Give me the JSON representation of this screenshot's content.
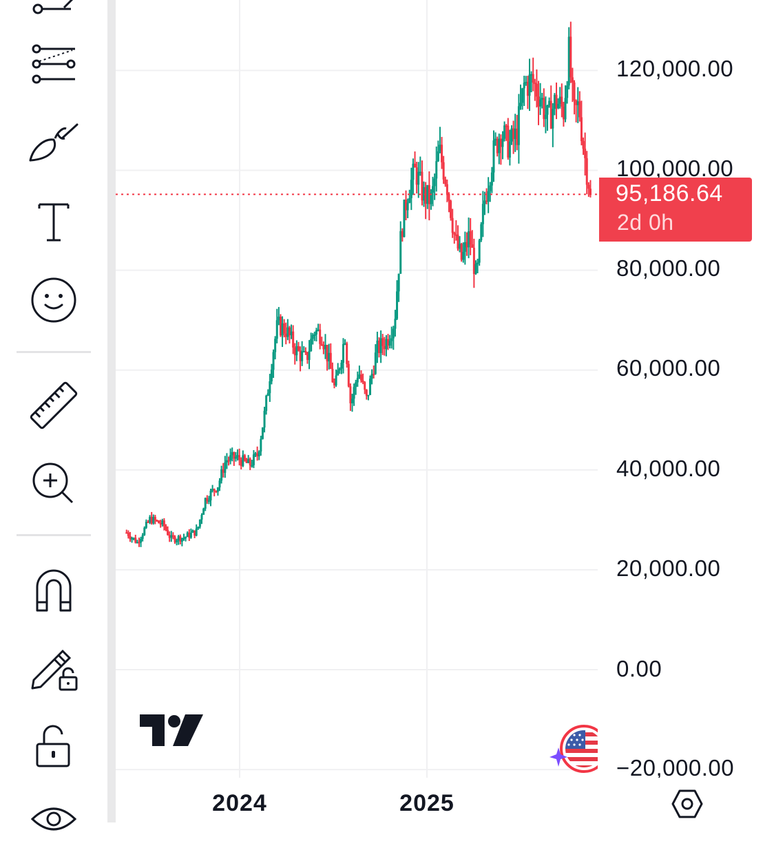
{
  "toolbar": {
    "tools": [
      {
        "name": "trend-line-tool",
        "icon": "trend-line-icon"
      },
      {
        "name": "fib-retracement-tool",
        "icon": "fib-lines-icon"
      },
      {
        "name": "brush-tool",
        "icon": "brush-icon"
      },
      {
        "name": "text-tool",
        "icon": "text-icon",
        "glyph": "T"
      },
      {
        "name": "emoji-tool",
        "icon": "smiley-icon"
      },
      {
        "name": "measure-tool",
        "icon": "ruler-icon"
      },
      {
        "name": "zoom-in-tool",
        "icon": "zoom-in-icon"
      },
      {
        "name": "magnet-mode-tool",
        "icon": "magnet-icon"
      },
      {
        "name": "lock-drawings-tool",
        "icon": "pencil-lock-icon"
      },
      {
        "name": "lock-all-tool",
        "icon": "unlock-icon"
      },
      {
        "name": "hide-drawings-tool",
        "icon": "eye-icon"
      }
    ]
  },
  "price_axis": {
    "ticks": [
      "120,000.00",
      "100,000.00",
      "80,000.00",
      "60,000.00",
      "40,000.00",
      "20,000.00",
      "0.00",
      "−20,000.00"
    ]
  },
  "time_axis": {
    "ticks": [
      "2024",
      "2025"
    ]
  },
  "current_price": {
    "value": "95,186.64",
    "countdown": "2d 0h"
  },
  "colors": {
    "up": "#089981",
    "down": "#f23645",
    "price_label_bg": "#f0404d",
    "grid": "#f0f0f2",
    "toolbar_border": "#e9e9ea"
  },
  "branding": {
    "logo_icon": "tradingview-logo",
    "badge_icon": "us-flag-badge-icon"
  },
  "settings": {
    "icon": "hexagon-settings-icon"
  },
  "chart_data": {
    "type": "candlestick",
    "ylim": [
      -20000,
      125000
    ],
    "price_ticks": [
      120000,
      100000,
      80000,
      60000,
      40000,
      20000,
      0,
      -20000
    ],
    "time_ticks": [
      {
        "label": "2024",
        "date": "2024-01-01"
      },
      {
        "label": "2025",
        "date": "2025-01-01"
      }
    ],
    "x_range": [
      "2023-05-25",
      "2025-11-17"
    ],
    "current_price": 95186.64,
    "candle_interval": "1W",
    "anchors": [
      [
        "2023-05-25",
        27500
      ],
      [
        "2023-06-15",
        25500
      ],
      [
        "2023-07-10",
        30200
      ],
      [
        "2023-08-05",
        29000
      ],
      [
        "2023-08-20",
        26200
      ],
      [
        "2023-09-15",
        26500
      ],
      [
        "2023-10-10",
        27800
      ],
      [
        "2023-10-25",
        34000
      ],
      [
        "2023-11-20",
        37000
      ],
      [
        "2023-12-05",
        42000
      ],
      [
        "2023-12-25",
        42500
      ],
      [
        "2024-01-20",
        41000
      ],
      [
        "2024-02-05",
        43000
      ],
      [
        "2024-02-20",
        52000
      ],
      [
        "2024-03-05",
        63000
      ],
      [
        "2024-03-15",
        69000
      ],
      [
        "2024-04-01",
        68000
      ],
      [
        "2024-04-20",
        64000
      ],
      [
        "2024-05-10",
        62000
      ],
      [
        "2024-05-25",
        68000
      ],
      [
        "2024-06-10",
        67000
      ],
      [
        "2024-06-25",
        61000
      ],
      [
        "2024-07-05",
        56000
      ],
      [
        "2024-07-25",
        67000
      ],
      [
        "2024-08-05",
        53000
      ],
      [
        "2024-08-20",
        60000
      ],
      [
        "2024-09-05",
        54000
      ],
      [
        "2024-09-25",
        64000
      ],
      [
        "2024-10-15",
        66000
      ],
      [
        "2024-10-30",
        70000
      ],
      [
        "2024-11-12",
        88000
      ],
      [
        "2024-11-25",
        96000
      ],
      [
        "2024-12-10",
        100000
      ],
      [
        "2024-12-25",
        95000
      ],
      [
        "2025-01-10",
        94000
      ],
      [
        "2025-01-25",
        104000
      ],
      [
        "2025-02-10",
        97000
      ],
      [
        "2025-02-25",
        86000
      ],
      [
        "2025-03-10",
        82000
      ],
      [
        "2025-03-25",
        87000
      ],
      [
        "2025-04-08",
        78000
      ],
      [
        "2025-04-22",
        93000
      ],
      [
        "2025-05-10",
        103000
      ],
      [
        "2025-05-25",
        108000
      ],
      [
        "2025-06-10",
        105000
      ],
      [
        "2025-06-25",
        107000
      ],
      [
        "2025-07-10",
        117000
      ],
      [
        "2025-07-25",
        118000
      ],
      [
        "2025-08-10",
        115000
      ],
      [
        "2025-08-25",
        110000
      ],
      [
        "2025-09-10",
        114000
      ],
      [
        "2025-09-25",
        112000
      ],
      [
        "2025-10-05",
        124000
      ],
      [
        "2025-10-15",
        111000
      ],
      [
        "2025-10-25",
        113000
      ],
      [
        "2025-11-05",
        103000
      ],
      [
        "2025-11-17",
        95186.64
      ]
    ]
  }
}
